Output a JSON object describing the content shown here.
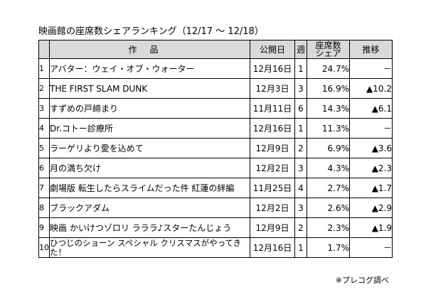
{
  "title": "映画館の座席数シェアランキング（12/17 ～ 12/18）",
  "headers": {
    "rank": "",
    "title": "作品",
    "date": "公開日",
    "week": "週",
    "share_line1": "座席数",
    "share_line2": "シェア",
    "trend": "推移"
  },
  "rows": [
    {
      "rank": "1",
      "title": "アバター：ウェイ・オブ・ウォーター",
      "date": "12月16日",
      "week": "1",
      "share": "24.7%",
      "trend": "－"
    },
    {
      "rank": "2",
      "title": "THE FIRST SLAM DUNK",
      "date": "12月3日",
      "week": "3",
      "share": "16.9%",
      "trend": "▲10.2"
    },
    {
      "rank": "3",
      "title": "すずめの戸締まり",
      "date": "11月11日",
      "week": "6",
      "share": "14.3%",
      "trend": "▲6.1"
    },
    {
      "rank": "4",
      "title": "Dr.コトー診療所",
      "date": "12月16日",
      "week": "1",
      "share": "11.3%",
      "trend": "－"
    },
    {
      "rank": "5",
      "title": "ラーゲリより愛を込めて",
      "date": "12月9日",
      "week": "2",
      "share": "6.9%",
      "trend": "▲3.6"
    },
    {
      "rank": "6",
      "title": "月の満ち欠け",
      "date": "12月2日",
      "week": "3",
      "share": "4.3%",
      "trend": "▲2.3"
    },
    {
      "rank": "7",
      "title": "劇場版 転生したらスライムだった件 紅蓮の絆編",
      "date": "11月25日",
      "week": "4",
      "share": "2.7%",
      "trend": "▲1.7"
    },
    {
      "rank": "8",
      "title": "ブラックアダム",
      "date": "12月2日",
      "week": "3",
      "share": "2.6%",
      "trend": "▲2.9"
    },
    {
      "rank": "9",
      "title": "映画 かいけつゾロリ ラララ♪スターたんじょう",
      "date": "12月9日",
      "week": "2",
      "share": "2.3%",
      "trend": "▲1.9"
    },
    {
      "rank": "10",
      "title": "ひつじのショーン スペシャル クリスマスがやってきた！",
      "date": "12月16日",
      "week": "1",
      "share": "1.7%",
      "trend": "－"
    }
  ],
  "footnote": "※プレコグ調べ"
}
